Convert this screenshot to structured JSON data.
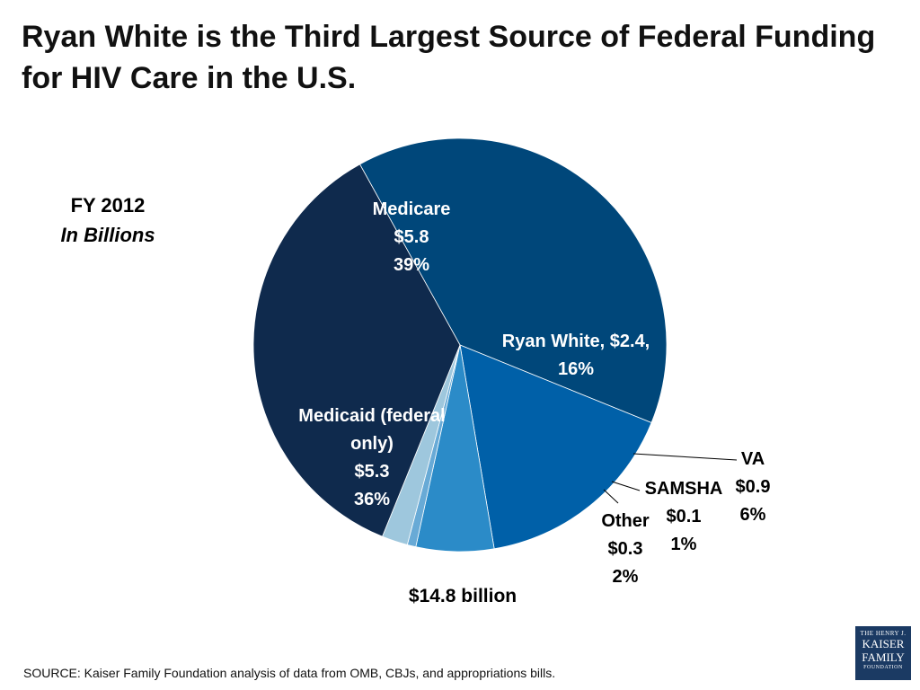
{
  "title": "Ryan White is the Third Largest Source of Federal Funding for HIV Care in the U.S.",
  "subtitle": {
    "year": "FY 2012",
    "unit": "In Billions"
  },
  "total_label": "$14.8 billion",
  "source": "SOURCE: Kaiser Family Foundation analysis of data from OMB, CBJs, and appropriations bills.",
  "logo": {
    "line1": "THE HENRY J.",
    "line2": "KAISER",
    "line3": "FAMILY",
    "line4": "FOUNDATION"
  },
  "chart_data": {
    "type": "pie",
    "unit": "$ billions",
    "slices": [
      {
        "name": "Medicare",
        "value": 5.8,
        "percent": 39,
        "color": "#00477a",
        "label_lines": [
          "Medicare",
          "$5.8",
          "39%"
        ]
      },
      {
        "name": "Ryan White",
        "value": 2.4,
        "percent": 16,
        "color": "#0060a8",
        "label_lines": [
          "Ryan White, $2.4,",
          "16%"
        ]
      },
      {
        "name": "VA",
        "value": 0.9,
        "percent": 6,
        "color": "#2b8bc8",
        "label_lines": [
          "VA",
          "$0.9",
          "6%"
        ]
      },
      {
        "name": "SAMSHA",
        "value": 0.1,
        "percent": 1,
        "color": "#68aad6",
        "label_lines": [
          "SAMSHA",
          "$0.1",
          "1%"
        ]
      },
      {
        "name": "Other",
        "value": 0.3,
        "percent": 2,
        "color": "#9ec7dd",
        "label_lines": [
          "Other",
          "$0.3",
          "2%"
        ]
      },
      {
        "name": "Medicaid (federal only)",
        "value": 5.3,
        "percent": 36,
        "color": "#0f2a4d",
        "label_lines": [
          "Medicaid (federal",
          "only)",
          "$5.3",
          "36%"
        ]
      }
    ]
  }
}
